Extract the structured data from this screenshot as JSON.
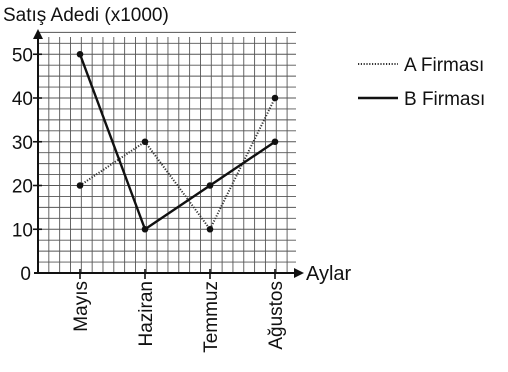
{
  "chart_data": {
    "type": "line",
    "ylabel": "Satış Adedi (x1000)",
    "xlabel": "Aylar",
    "categories": [
      "Mayıs",
      "Haziran",
      "Temmuz",
      "Ağustos"
    ],
    "y_ticks": [
      0,
      10,
      20,
      30,
      40,
      50
    ],
    "ylim": [
      0,
      55
    ],
    "grid": true,
    "legend_position": "top-right",
    "series": [
      {
        "name": "A Firması",
        "style": "dotted",
        "color": "#333333",
        "values": [
          20,
          30,
          10,
          40
        ]
      },
      {
        "name": "B Firması",
        "style": "solid",
        "color": "#111111",
        "values": [
          50,
          10,
          20,
          30
        ]
      }
    ]
  }
}
